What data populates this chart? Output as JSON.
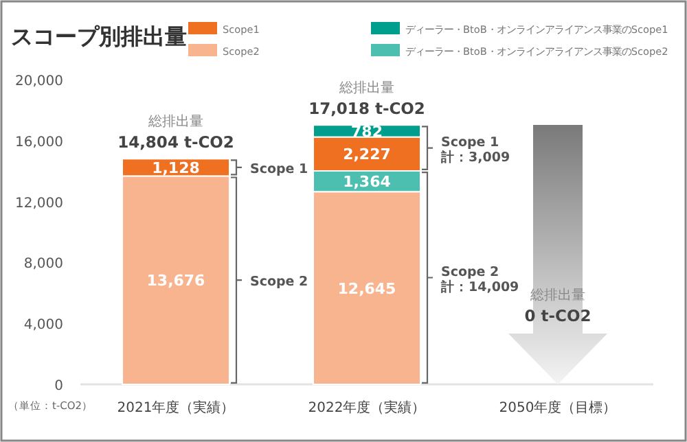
{
  "chart_data": {
    "type": "bar",
    "stacked": true,
    "title": "スコープ別排出量",
    "categories": [
      "2021年度（実績）",
      "2022年度（実績）",
      "2050年度（目標）"
    ],
    "series": [
      {
        "name": "Scope2",
        "color": "#f7b48f",
        "values": [
          13676,
          12645,
          null
        ],
        "value_labels": [
          "13,676",
          "12,645",
          null
        ]
      },
      {
        "name": "ディーラー・BtoB・オンラインアライアンス事業のScope2",
        "color": "#4dbfb0",
        "values": [
          null,
          1364,
          null
        ],
        "value_labels": [
          null,
          "1,364",
          null
        ]
      },
      {
        "name": "Scope1",
        "color": "#f07022",
        "values": [
          1128,
          2227,
          null
        ],
        "value_labels": [
          "1,128",
          "2,227",
          null
        ]
      },
      {
        "name": "ディーラー・BtoB・オンラインアライアンス事業のScope1",
        "color": "#009e8c",
        "values": [
          null,
          782,
          null
        ],
        "value_labels": [
          null,
          "782",
          null
        ]
      }
    ],
    "totals": [
      "14,804 t-CO2",
      "17,018 t-CO2",
      "0 t-CO2"
    ],
    "ylim": [
      0,
      20000
    ],
    "yticks": [
      0,
      {
        "value": 4000,
        "label": "4,000"
      },
      {
        "value": 8000,
        "label": "8,000"
      },
      {
        "value": 12000,
        "label": "12,000"
      },
      {
        "value": 16000,
        "label": "16,000"
      },
      {
        "value": 20000,
        "label": "20,000"
      }
    ],
    "legend": "top",
    "grid": false,
    "annotations": [
      "総排出量",
      "総排出量",
      "総排出量",
      "Scope 1",
      "Scope 2",
      "Scope 1",
      "計：3,009",
      "Scope 2",
      "計：14,009",
      "（単位：t-CO2）"
    ]
  }
}
